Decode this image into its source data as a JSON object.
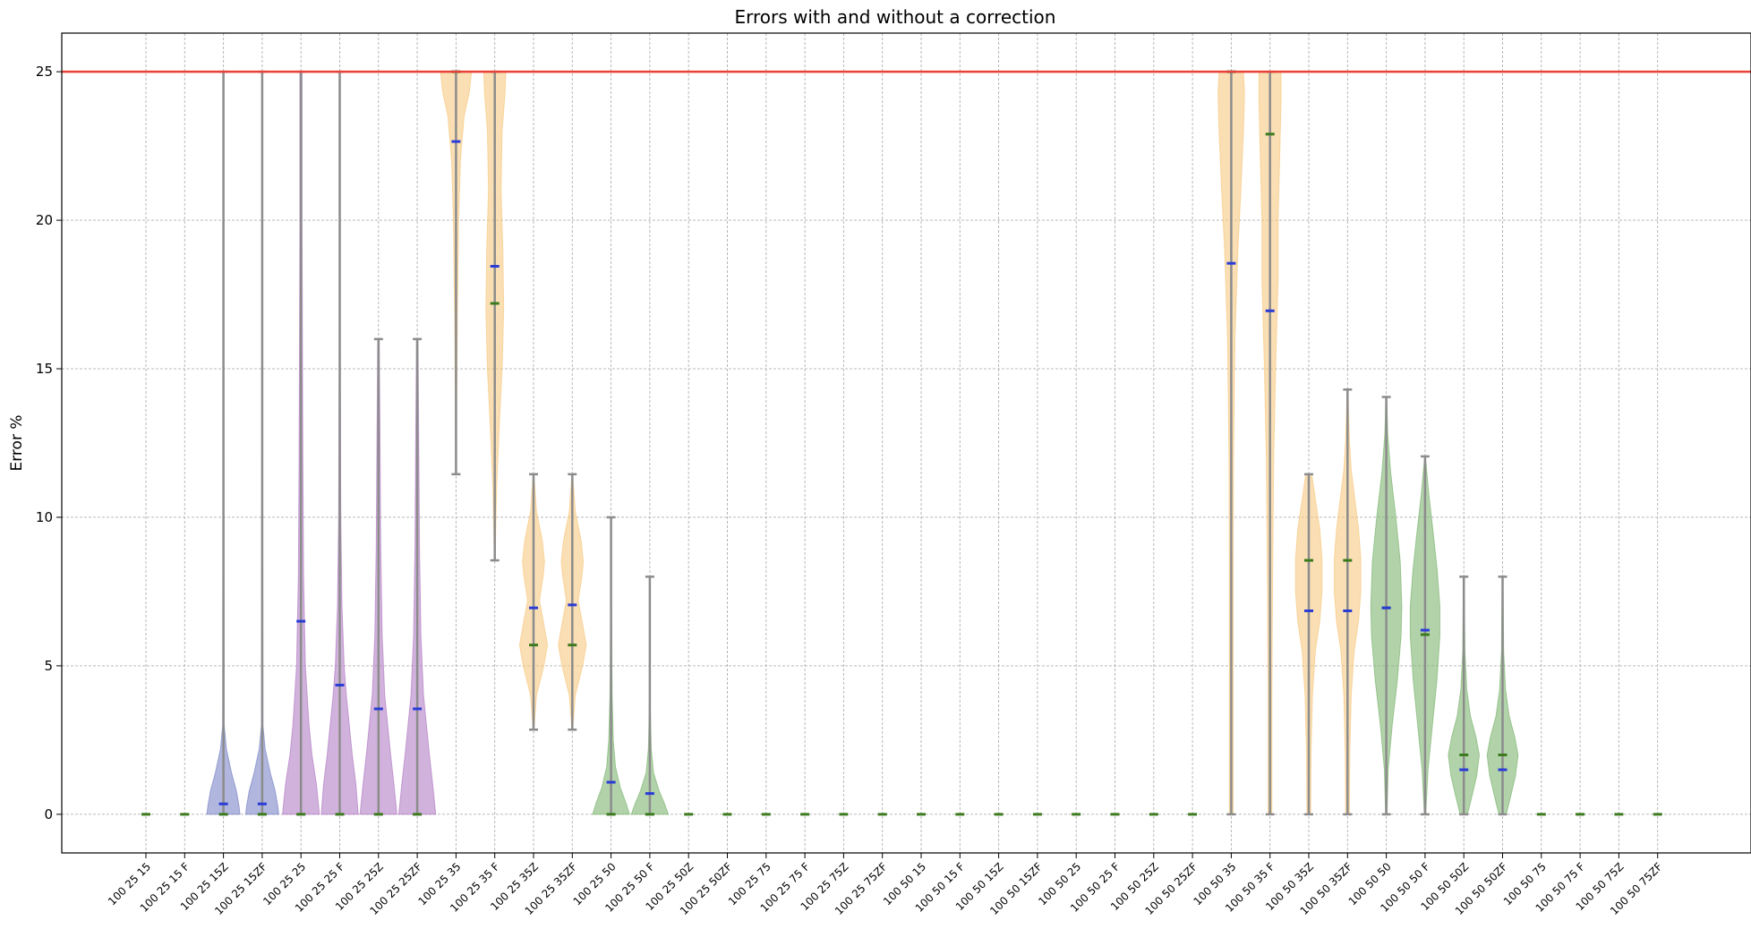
{
  "chart_data": {
    "type": "violin",
    "title": "Errors with and without a correction",
    "xlabel": "",
    "ylabel": "Error %",
    "ylim": [
      -1.3,
      26.3
    ],
    "yticks": [
      0,
      5,
      10,
      15,
      20,
      25
    ],
    "grid": true,
    "reference_line": {
      "y": 25,
      "color": "#e8413a"
    },
    "colors": {
      "blue": "#7b86c6",
      "purple": "#b27fc4",
      "orange": "#f6c982",
      "green": "#7fb572",
      "whisker": "#8c8c8c",
      "mean_marker": "#2a3cd6",
      "median_marker": "#3c7a1e"
    },
    "categories": [
      "100 25 15",
      "100 25 15 F",
      "100 25 15Z",
      "100 25 15ZF",
      "100 25 25",
      "100 25 25 F",
      "100 25 25Z",
      "100 25 25ZF",
      "100 25 35",
      "100 25 35 F",
      "100 25 35Z",
      "100 25 35ZF",
      "100 25 50",
      "100 25 50 F",
      "100 25 50Z",
      "100 25 50ZF",
      "100 25 75",
      "100 25 75 F",
      "100 25 75Z",
      "100 25 75ZF",
      "100 50 15",
      "100 50 15 F",
      "100 50 15Z",
      "100 50 15ZF",
      "100 50 25",
      "100 50 25 F",
      "100 50 25Z",
      "100 50 25ZF",
      "100 50 35",
      "100 50 35 F",
      "100 50 35Z",
      "100 50 35ZF",
      "100 50 50",
      "100 50 50 F",
      "100 50 50Z",
      "100 50 50ZF",
      "100 50 75",
      "100 50 75 F",
      "100 50 75Z",
      "100 50 75ZF"
    ],
    "violins": [
      {
        "color": "blue",
        "min": 0,
        "max": 0,
        "mean": null,
        "median": 0,
        "shape": []
      },
      {
        "color": "blue",
        "min": 0,
        "max": 0,
        "mean": null,
        "median": 0,
        "shape": []
      },
      {
        "color": "blue",
        "min": 0,
        "max": 25,
        "mean": 0.35,
        "median": 0,
        "shape": [
          [
            0,
            0.45
          ],
          [
            0.3,
            0.42
          ],
          [
            0.8,
            0.35
          ],
          [
            1.4,
            0.22
          ],
          [
            2.2,
            0.08
          ],
          [
            3,
            0.02
          ],
          [
            25,
            0
          ]
        ]
      },
      {
        "color": "blue",
        "min": 0,
        "max": 25,
        "mean": 0.35,
        "median": 0,
        "shape": [
          [
            0,
            0.45
          ],
          [
            0.3,
            0.42
          ],
          [
            0.8,
            0.35
          ],
          [
            1.4,
            0.22
          ],
          [
            2.2,
            0.08
          ],
          [
            3,
            0.02
          ],
          [
            25,
            0
          ]
        ]
      },
      {
        "color": "purple",
        "min": 0,
        "max": 25,
        "mean": 6.5,
        "median": 0,
        "shape": [
          [
            0,
            0.5
          ],
          [
            1,
            0.42
          ],
          [
            2,
            0.3
          ],
          [
            3,
            0.22
          ],
          [
            5,
            0.12
          ],
          [
            8,
            0.07
          ],
          [
            12,
            0.05
          ],
          [
            16,
            0.04
          ],
          [
            20,
            0.03
          ],
          [
            25,
            0.03
          ]
        ]
      },
      {
        "color": "purple",
        "min": 0,
        "max": 25,
        "mean": 4.35,
        "median": 0,
        "shape": [
          [
            0,
            0.5
          ],
          [
            1,
            0.44
          ],
          [
            2,
            0.34
          ],
          [
            3,
            0.26
          ],
          [
            4,
            0.18
          ],
          [
            5,
            0.12
          ],
          [
            7,
            0.06
          ],
          [
            10,
            0.03
          ],
          [
            15,
            0.015
          ],
          [
            20,
            0.01
          ],
          [
            25,
            0.008
          ]
        ]
      },
      {
        "color": "purple",
        "min": 0,
        "max": 16,
        "mean": 3.55,
        "median": 0,
        "shape": [
          [
            0,
            0.5
          ],
          [
            1,
            0.42
          ],
          [
            2,
            0.33
          ],
          [
            3,
            0.25
          ],
          [
            4,
            0.17
          ],
          [
            6,
            0.1
          ],
          [
            9,
            0.06
          ],
          [
            13,
            0.04
          ],
          [
            16,
            0.02
          ]
        ]
      },
      {
        "color": "purple",
        "min": 0,
        "max": 16,
        "mean": 3.55,
        "median": 0,
        "shape": [
          [
            0,
            0.5
          ],
          [
            1,
            0.42
          ],
          [
            2,
            0.33
          ],
          [
            3,
            0.25
          ],
          [
            4,
            0.17
          ],
          [
            6,
            0.1
          ],
          [
            9,
            0.06
          ],
          [
            13,
            0.04
          ],
          [
            16,
            0.02
          ]
        ]
      },
      {
        "color": "orange",
        "min": 11.45,
        "max": 25,
        "mean": 22.65,
        "median": 25,
        "shape": [
          [
            11.45,
            0.01
          ],
          [
            14,
            0.02
          ],
          [
            17,
            0.04
          ],
          [
            20,
            0.07
          ],
          [
            22,
            0.12
          ],
          [
            23.5,
            0.22
          ],
          [
            24.3,
            0.36
          ],
          [
            25,
            0.42
          ]
        ]
      },
      {
        "color": "orange",
        "min": 8.55,
        "max": 25,
        "mean": 18.45,
        "median": 17.2,
        "shape": [
          [
            8.55,
            0.01
          ],
          [
            11,
            0.05
          ],
          [
            13,
            0.12
          ],
          [
            15,
            0.2
          ],
          [
            17,
            0.24
          ],
          [
            19,
            0.22
          ],
          [
            21,
            0.17
          ],
          [
            23,
            0.2
          ],
          [
            24.3,
            0.28
          ],
          [
            25,
            0.3
          ]
        ]
      },
      {
        "color": "orange",
        "min": 2.85,
        "max": 11.45,
        "mean": 6.95,
        "median": 5.7,
        "shape": [
          [
            2.85,
            0.01
          ],
          [
            4,
            0.08
          ],
          [
            5,
            0.28
          ],
          [
            5.7,
            0.38
          ],
          [
            6.4,
            0.28
          ],
          [
            7.2,
            0.16
          ],
          [
            8,
            0.26
          ],
          [
            8.5,
            0.3
          ],
          [
            9.2,
            0.24
          ],
          [
            10.2,
            0.08
          ],
          [
            11.45,
            0.01
          ]
        ]
      },
      {
        "color": "orange",
        "min": 2.85,
        "max": 11.45,
        "mean": 7.05,
        "median": 5.7,
        "shape": [
          [
            2.85,
            0.01
          ],
          [
            4,
            0.08
          ],
          [
            5,
            0.28
          ],
          [
            5.7,
            0.38
          ],
          [
            6.4,
            0.28
          ],
          [
            7.2,
            0.16
          ],
          [
            8,
            0.26
          ],
          [
            8.5,
            0.3
          ],
          [
            9.2,
            0.24
          ],
          [
            10.2,
            0.08
          ],
          [
            11.45,
            0.01
          ]
        ]
      },
      {
        "color": "green",
        "min": 0,
        "max": 10,
        "mean": 1.08,
        "median": 0,
        "shape": [
          [
            0,
            0.5
          ],
          [
            0.4,
            0.4
          ],
          [
            0.9,
            0.25
          ],
          [
            1.6,
            0.12
          ],
          [
            2.5,
            0.06
          ],
          [
            4,
            0.03
          ],
          [
            7,
            0.01
          ],
          [
            10,
            0.005
          ]
        ]
      },
      {
        "color": "green",
        "min": 0,
        "max": 8,
        "mean": 0.7,
        "median": 0,
        "shape": [
          [
            0,
            0.5
          ],
          [
            0.35,
            0.4
          ],
          [
            0.8,
            0.25
          ],
          [
            1.4,
            0.1
          ],
          [
            2.2,
            0.04
          ],
          [
            3.5,
            0.015
          ],
          [
            8,
            0.005
          ]
        ]
      },
      {
        "color": "green",
        "min": 0,
        "max": 0,
        "mean": null,
        "median": 0,
        "shape": []
      },
      {
        "color": "green",
        "min": 0,
        "max": 0,
        "mean": null,
        "median": 0,
        "shape": []
      },
      {
        "color": "green",
        "min": 0,
        "max": 0,
        "mean": null,
        "median": 0,
        "shape": []
      },
      {
        "color": "green",
        "min": 0,
        "max": 0,
        "mean": null,
        "median": 0,
        "shape": []
      },
      {
        "color": "green",
        "min": 0,
        "max": 0,
        "mean": null,
        "median": 0,
        "shape": []
      },
      {
        "color": "green",
        "min": 0,
        "max": 0,
        "mean": null,
        "median": 0,
        "shape": []
      },
      {
        "color": "green",
        "min": 0,
        "max": 0,
        "mean": null,
        "median": 0,
        "shape": []
      },
      {
        "color": "green",
        "min": 0,
        "max": 0,
        "mean": null,
        "median": 0,
        "shape": []
      },
      {
        "color": "green",
        "min": 0,
        "max": 0,
        "mean": null,
        "median": 0,
        "shape": []
      },
      {
        "color": "green",
        "min": 0,
        "max": 0,
        "mean": null,
        "median": 0,
        "shape": []
      },
      {
        "color": "green",
        "min": 0,
        "max": 0,
        "mean": null,
        "median": 0,
        "shape": []
      },
      {
        "color": "green",
        "min": 0,
        "max": 0,
        "mean": null,
        "median": 0,
        "shape": []
      },
      {
        "color": "green",
        "min": 0,
        "max": 0,
        "mean": null,
        "median": 0,
        "shape": []
      },
      {
        "color": "green",
        "min": 0,
        "max": 0,
        "mean": null,
        "median": 0,
        "shape": []
      },
      {
        "color": "orange",
        "min": 0,
        "max": 25,
        "mean": 18.55,
        "median": 25,
        "shape": [
          [
            0,
            0.05
          ],
          [
            4,
            0.05
          ],
          [
            8,
            0.05
          ],
          [
            12,
            0.06
          ],
          [
            16,
            0.1
          ],
          [
            19,
            0.18
          ],
          [
            21,
            0.26
          ],
          [
            23,
            0.33
          ],
          [
            24.3,
            0.36
          ],
          [
            25,
            0.33
          ]
        ]
      },
      {
        "color": "orange",
        "min": 0,
        "max": 25,
        "mean": 16.95,
        "median": 22.9,
        "shape": [
          [
            0,
            0.05
          ],
          [
            4,
            0.05
          ],
          [
            8,
            0.07
          ],
          [
            12,
            0.1
          ],
          [
            15,
            0.15
          ],
          [
            18,
            0.22
          ],
          [
            20,
            0.22
          ],
          [
            22,
            0.26
          ],
          [
            24,
            0.3
          ],
          [
            25,
            0.3
          ]
        ]
      },
      {
        "color": "orange",
        "min": 0,
        "max": 11.45,
        "mean": 6.85,
        "median": 8.55,
        "shape": [
          [
            0,
            0.05
          ],
          [
            2,
            0.06
          ],
          [
            4,
            0.1
          ],
          [
            5.5,
            0.18
          ],
          [
            6.5,
            0.3
          ],
          [
            7.5,
            0.36
          ],
          [
            8.6,
            0.36
          ],
          [
            9.6,
            0.3
          ],
          [
            10.6,
            0.18
          ],
          [
            11.45,
            0.08
          ]
        ]
      },
      {
        "color": "orange",
        "min": 0,
        "max": 14.3,
        "mean": 6.85,
        "median": 8.55,
        "shape": [
          [
            0,
            0.05
          ],
          [
            2,
            0.06
          ],
          [
            4,
            0.1
          ],
          [
            5.5,
            0.18
          ],
          [
            6.5,
            0.3
          ],
          [
            7.5,
            0.36
          ],
          [
            8.6,
            0.36
          ],
          [
            9.6,
            0.3
          ],
          [
            10.6,
            0.2
          ],
          [
            11.6,
            0.1
          ],
          [
            12.6,
            0.05
          ],
          [
            14.3,
            0.01
          ]
        ]
      },
      {
        "color": "green",
        "min": 0,
        "max": 14.05,
        "mean": 6.95,
        "median": 6.95,
        "shape": [
          [
            0,
            0.02
          ],
          [
            1.5,
            0.05
          ],
          [
            3,
            0.16
          ],
          [
            4.5,
            0.3
          ],
          [
            6,
            0.4
          ],
          [
            7,
            0.42
          ],
          [
            8.5,
            0.38
          ],
          [
            10,
            0.26
          ],
          [
            11.5,
            0.12
          ],
          [
            12.8,
            0.04
          ],
          [
            14.05,
            0.01
          ]
        ]
      },
      {
        "color": "green",
        "min": 0,
        "max": 12.05,
        "mean": 6.2,
        "median": 6.05,
        "shape": [
          [
            0,
            0.02
          ],
          [
            1.5,
            0.08
          ],
          [
            3,
            0.2
          ],
          [
            4.5,
            0.32
          ],
          [
            6,
            0.4
          ],
          [
            7,
            0.4
          ],
          [
            8.2,
            0.33
          ],
          [
            9.5,
            0.22
          ],
          [
            10.8,
            0.1
          ],
          [
            12.05,
            0.01
          ]
        ]
      },
      {
        "color": "green",
        "min": 0,
        "max": 8,
        "mean": 1.5,
        "median": 2.0,
        "shape": [
          [
            0,
            0.1
          ],
          [
            0.6,
            0.22
          ],
          [
            1.3,
            0.35
          ],
          [
            2,
            0.42
          ],
          [
            2.6,
            0.33
          ],
          [
            3.3,
            0.18
          ],
          [
            4.2,
            0.08
          ],
          [
            5.5,
            0.03
          ],
          [
            8,
            0.01
          ]
        ]
      },
      {
        "color": "green",
        "min": 0,
        "max": 8,
        "mean": 1.5,
        "median": 2.0,
        "shape": [
          [
            0,
            0.1
          ],
          [
            0.6,
            0.22
          ],
          [
            1.3,
            0.35
          ],
          [
            2,
            0.42
          ],
          [
            2.6,
            0.33
          ],
          [
            3.3,
            0.18
          ],
          [
            4.2,
            0.08
          ],
          [
            5.5,
            0.03
          ],
          [
            8,
            0.01
          ]
        ]
      },
      {
        "color": "green",
        "min": 0,
        "max": 0,
        "mean": null,
        "median": 0,
        "shape": []
      },
      {
        "color": "green",
        "min": 0,
        "max": 0,
        "mean": null,
        "median": 0,
        "shape": []
      },
      {
        "color": "green",
        "min": 0,
        "max": 0,
        "mean": null,
        "median": 0,
        "shape": []
      },
      {
        "color": "green",
        "min": 0,
        "max": 0,
        "mean": null,
        "median": 0,
        "shape": []
      }
    ]
  }
}
